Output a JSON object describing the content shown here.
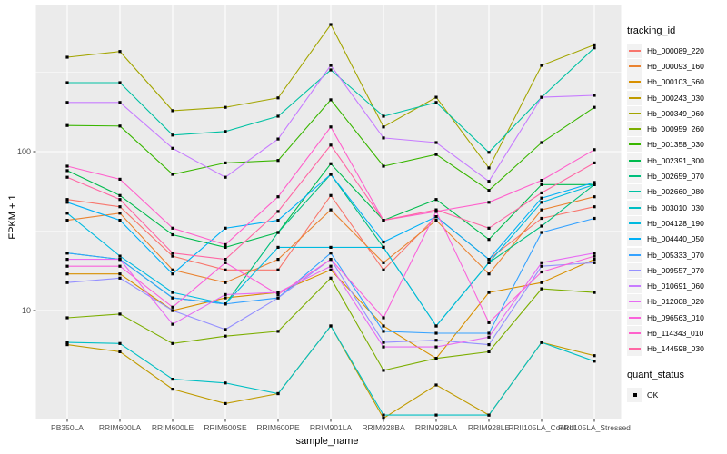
{
  "chart": {
    "y_axis_title": "FPKM + 1",
    "x_axis_title": "sample_name",
    "legend": {
      "tracking_title": "tracking_id",
      "quant_title": "quant_status",
      "quant_label": "OK"
    }
  },
  "chart_data": {
    "type": "line",
    "title": "",
    "xlabel": "sample_name",
    "ylabel": "FPKM + 1",
    "y_scale": "log10",
    "y_tick_values": [
      100,
      10
    ],
    "y_tick_labels": [
      "100",
      "10"
    ],
    "y_minor_gridlines": [
      316.2,
      31.62,
      3.162
    ],
    "ylim_log10": [
      0.32,
      2.92
    ],
    "grid": true,
    "legend_position": "right",
    "panel_bg": "#EBEBEB",
    "gridline_color": "#FFFFFF",
    "point_color": "#000000",
    "tick_label_color": "#4D4D4D",
    "quant_status": "OK",
    "categories": [
      "PB350LA",
      "RRIM600LA",
      "RRIM600LE",
      "RRIM600SE",
      "RRIM600PE",
      "RRIM901LA",
      "RRIM928BA",
      "RRIM928LA",
      "RRIM928LE",
      "RRII105LA_Control",
      "RRII105LA_Stressed"
    ],
    "series": [
      {
        "name": "Hb_000089_220",
        "color": "#F8766D",
        "values": [
          50,
          45,
          22,
          18,
          18,
          53,
          18,
          39,
          21,
          38,
          45
        ]
      },
      {
        "name": "Hb_000093_160",
        "color": "#EA8331",
        "values": [
          37,
          41,
          18,
          15,
          21,
          43,
          20,
          37,
          17,
          43,
          52
        ]
      },
      {
        "name": "Hb_000103_560",
        "color": "#D89000",
        "values": [
          17,
          17,
          10,
          12,
          13,
          18,
          8,
          5,
          13,
          15,
          21
        ]
      },
      {
        "name": "Hb_000243_030",
        "color": "#C09B00",
        "values": [
          6.1,
          5.5,
          3.2,
          2.6,
          3.0,
          8.0,
          2.1,
          3.4,
          2.2,
          6.3,
          5.2
        ]
      },
      {
        "name": "Hb_000349_060",
        "color": "#A3A500",
        "values": [
          393,
          427,
          181,
          190,
          218,
          631,
          143,
          220,
          79,
          349,
          470
        ]
      },
      {
        "name": "Hb_000959_260",
        "color": "#7CAE00",
        "values": [
          9.0,
          9.5,
          6.2,
          6.9,
          7.4,
          16,
          4.2,
          5.0,
          5.5,
          13.7,
          13
        ]
      },
      {
        "name": "Hb_001358_030",
        "color": "#39B600",
        "values": [
          146,
          145,
          72,
          85,
          88,
          212,
          81,
          96,
          57,
          114,
          190
        ]
      },
      {
        "name": "Hb_002391_300",
        "color": "#00BB4E",
        "values": [
          76,
          53,
          30,
          25,
          31,
          84,
          37,
          50,
          28,
          62,
          62
        ]
      },
      {
        "name": "Hb_002659_070",
        "color": "#00BF7D",
        "values": [
          23,
          21,
          12,
          11,
          31,
          72,
          25,
          8,
          20,
          34,
          62
        ]
      },
      {
        "name": "Hb_002660_080",
        "color": "#00C1A3",
        "values": [
          272,
          272,
          127,
          134,
          167,
          327,
          167,
          204,
          99,
          220,
          450
        ]
      },
      {
        "name": "Hb_003010_030",
        "color": "#00BFC4",
        "values": [
          6.3,
          6.2,
          3.7,
          3.5,
          3.0,
          8.0,
          2.2,
          2.2,
          2.2,
          6.3,
          4.8
        ]
      },
      {
        "name": "Hb_004128_190",
        "color": "#00BAE0",
        "values": [
          41,
          22,
          13,
          11,
          25,
          25,
          25,
          8,
          20,
          48,
          62
        ]
      },
      {
        "name": "Hb_004440_050",
        "color": "#00B0F6",
        "values": [
          48,
          37,
          17,
          33,
          37,
          72,
          27,
          39,
          21,
          51,
          64
        ]
      },
      {
        "name": "Hb_005333_070",
        "color": "#35A2FF",
        "values": [
          23,
          21,
          12,
          11,
          12,
          23,
          7.4,
          7.2,
          7.2,
          31,
          38
        ]
      },
      {
        "name": "Hb_009557_070",
        "color": "#9590FF",
        "values": [
          15,
          16,
          10,
          7.6,
          12,
          21,
          6.3,
          6.5,
          6.1,
          19,
          20
        ]
      },
      {
        "name": "Hb_010691_060",
        "color": "#C77CFF",
        "values": [
          204,
          204,
          105,
          69,
          120,
          349,
          122,
          114,
          65,
          220,
          226
        ]
      },
      {
        "name": "Hb_012008_020",
        "color": "#E76BF3",
        "values": [
          21,
          21,
          8.2,
          12.6,
          13,
          19,
          5.9,
          5.9,
          6.8,
          20,
          23
        ]
      },
      {
        "name": "Hb_096563_010",
        "color": "#FA62DB",
        "values": [
          19,
          19,
          10.5,
          20,
          12.6,
          21,
          9,
          42,
          8.4,
          17.5,
          22
        ]
      },
      {
        "name": "Hb_114343_010",
        "color": "#FF61CC",
        "values": [
          81,
          67,
          33,
          26,
          52,
          143,
          37,
          42,
          48,
          66,
          103
        ]
      },
      {
        "name": "Hb_144598_030",
        "color": "#FF67A4",
        "values": [
          69,
          50,
          23,
          21,
          42,
          110,
          37,
          43,
          33,
          55,
          85
        ]
      }
    ]
  }
}
